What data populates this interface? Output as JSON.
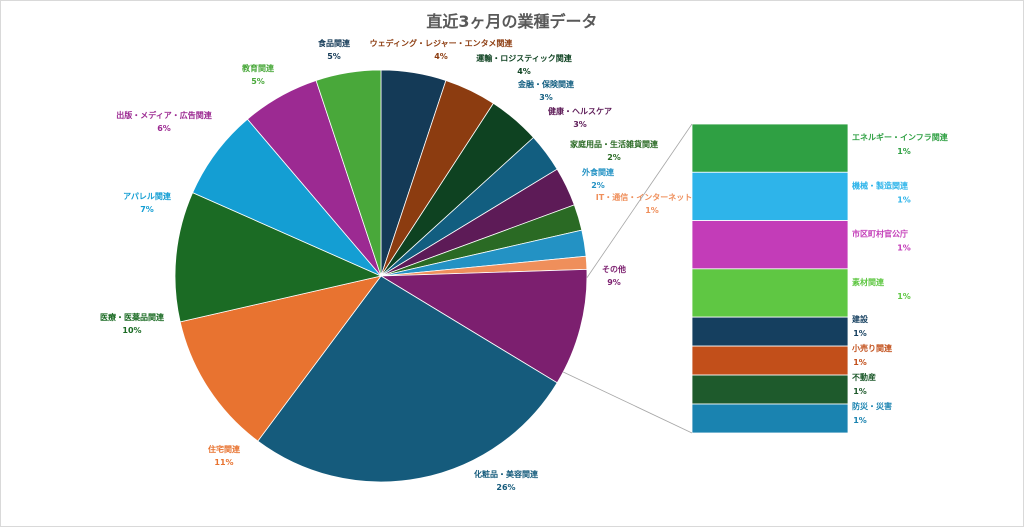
{
  "chart_data": {
    "type": "pie",
    "title": "直近3ヶ月の業種データ",
    "subtype": "pie-of-pie",
    "slices": [
      {
        "label": "食品関連",
        "value": 5,
        "pct": "5%",
        "color": "#143a57"
      },
      {
        "label": "ウェディング・レジャー・エンタメ関連",
        "value": 4,
        "pct": "4%",
        "color": "#8c3c10"
      },
      {
        "label": "運輸・ロジスティック関連",
        "value": 4,
        "pct": "4%",
        "color": "#0e4221"
      },
      {
        "label": "金融・保険関連",
        "value": 3,
        "pct": "3%",
        "color": "#125e80"
      },
      {
        "label": "健康・ヘルスケア",
        "value": 3,
        "pct": "3%",
        "color": "#5d1b57"
      },
      {
        "label": "家庭用品・生活雑貨関連",
        "value": 2,
        "pct": "2%",
        "color": "#2a6a24"
      },
      {
        "label": "外食関連",
        "value": 2,
        "pct": "2%",
        "color": "#2392c4"
      },
      {
        "label": "IT・通信・インターネット関連",
        "value": 1,
        "pct": "1%",
        "color": "#ef8f5b"
      },
      {
        "label": "その他",
        "value": 9,
        "pct": "9%",
        "color": "#7c1f6f"
      },
      {
        "label": "化粧品・美容関連",
        "value": 26,
        "pct": "26%",
        "color": "#155b7c"
      },
      {
        "label": "住宅関連",
        "value": 11,
        "pct": "11%",
        "color": "#e87330"
      },
      {
        "label": "医療・医薬品関連",
        "value": 10,
        "pct": "10%",
        "color": "#1b6b24"
      },
      {
        "label": "アパレル関連",
        "value": 7,
        "pct": "7%",
        "color": "#149ed3"
      },
      {
        "label": "出版・メディア・広告関連",
        "value": 6,
        "pct": "6%",
        "color": "#9c2a92"
      },
      {
        "label": "教育関連",
        "value": 5,
        "pct": "5%",
        "color": "#49a83a"
      }
    ],
    "other_breakdown": [
      {
        "label": "エネルギー・インフラ関連",
        "value": 1,
        "pct": "1%",
        "color": "#2fa043"
      },
      {
        "label": "機械・製造関連",
        "value": 1,
        "pct": "1%",
        "color": "#2eb4ea"
      },
      {
        "label": "市区町村官公庁",
        "value": 1,
        "pct": "1%",
        "color": "#c33cb8"
      },
      {
        "label": "素材関連",
        "value": 1,
        "pct": "1%",
        "color": "#5fc743"
      },
      {
        "label": "建設",
        "value": 0.6,
        "pct": "1%",
        "color": "#153f5f"
      },
      {
        "label": "小売り関連",
        "value": 0.6,
        "pct": "1%",
        "color": "#c24f1a"
      },
      {
        "label": "不動産",
        "value": 0.6,
        "pct": "1%",
        "color": "#1e5a2c"
      },
      {
        "label": "防災・災害",
        "value": 0.6,
        "pct": "1%",
        "color": "#1a83b0"
      }
    ],
    "legend": "none"
  }
}
